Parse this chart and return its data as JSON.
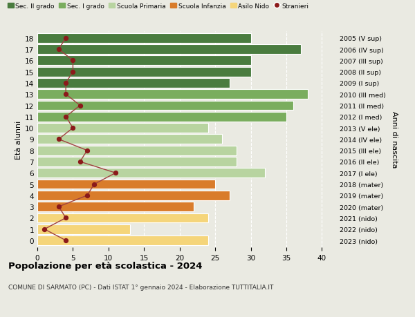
{
  "ages": [
    18,
    17,
    16,
    15,
    14,
    13,
    12,
    11,
    10,
    9,
    8,
    7,
    6,
    5,
    4,
    3,
    2,
    1,
    0
  ],
  "bar_values": [
    30,
    37,
    30,
    30,
    27,
    38,
    36,
    35,
    24,
    26,
    28,
    28,
    32,
    25,
    27,
    22,
    24,
    13,
    24
  ],
  "bar_colors": [
    "#4a7c3f",
    "#4a7c3f",
    "#4a7c3f",
    "#4a7c3f",
    "#4a7c3f",
    "#7aad5e",
    "#7aad5e",
    "#7aad5e",
    "#b8d4a0",
    "#b8d4a0",
    "#b8d4a0",
    "#b8d4a0",
    "#b8d4a0",
    "#d97c2b",
    "#d97c2b",
    "#d97c2b",
    "#f5d57a",
    "#f5d57a",
    "#f5d57a"
  ],
  "stranieri_values": [
    4,
    3,
    5,
    5,
    4,
    4,
    6,
    4,
    5,
    3,
    7,
    6,
    11,
    8,
    7,
    3,
    4,
    1,
    4
  ],
  "right_labels": [
    "2005 (V sup)",
    "2006 (IV sup)",
    "2007 (III sup)",
    "2008 (II sup)",
    "2009 (I sup)",
    "2010 (III med)",
    "2011 (II med)",
    "2012 (I med)",
    "2013 (V ele)",
    "2014 (IV ele)",
    "2015 (III ele)",
    "2016 (II ele)",
    "2017 (I ele)",
    "2018 (mater)",
    "2019 (mater)",
    "2020 (mater)",
    "2021 (nido)",
    "2022 (nido)",
    "2023 (nido)"
  ],
  "legend_labels": [
    "Sec. II grado",
    "Sec. I grado",
    "Scuola Primaria",
    "Scuola Infanzia",
    "Asilo Nido",
    "Stranieri"
  ],
  "legend_colors": [
    "#4a7c3f",
    "#7aad5e",
    "#b8d4a0",
    "#d97c2b",
    "#f5d57a",
    "#8b1a1a"
  ],
  "ylabel_left": "Età alunni",
  "ylabel_right": "Anni di nascita",
  "title": "Popolazione per età scolastica - 2024",
  "subtitle": "COMUNE DI SARMATO (PC) - Dati ISTAT 1° gennaio 2024 - Elaborazione TUTTITALIA.IT",
  "xlim": [
    0,
    42
  ],
  "bg_color": "#eaeae2",
  "stranieri_color": "#8b1a1a",
  "stranieri_line_color": "#a04040",
  "grid_color": "#ffffff"
}
